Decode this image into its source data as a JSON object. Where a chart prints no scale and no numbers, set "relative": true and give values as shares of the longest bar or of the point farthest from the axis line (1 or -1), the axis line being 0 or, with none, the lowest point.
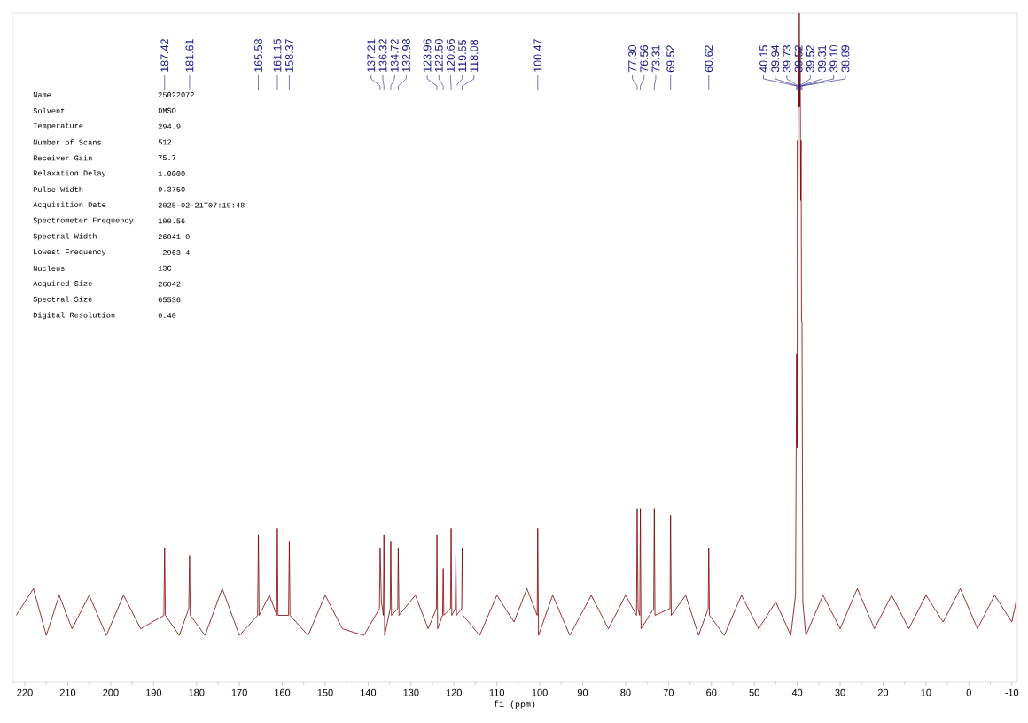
{
  "chart_data": {
    "type": "line",
    "relative": true,
    "xlabel": "f1 (ppm)",
    "xlim": [
      222.9,
      -11.3
    ],
    "xticks": [
      220,
      210,
      200,
      190,
      180,
      170,
      160,
      150,
      140,
      130,
      120,
      110,
      100,
      90,
      80,
      70,
      60,
      50,
      40,
      30,
      20,
      10,
      0,
      -10
    ],
    "series": [
      {
        "color": "#7f0000",
        "x": [
          222,
          218,
          215,
          212,
          209,
          205,
          201,
          197,
          193,
          187.6,
          187.42,
          187.25,
          184,
          181.8,
          181.61,
          181.45,
          178,
          174,
          170,
          165.75,
          165.58,
          165.4,
          163,
          161.3,
          161.15,
          161.0,
          158.55,
          158.37,
          158.2,
          154,
          150,
          146,
          141,
          137.35,
          137.21,
          136.9,
          136.45,
          136.32,
          136.15,
          134.85,
          134.72,
          134.55,
          133.1,
          132.98,
          132.8,
          129,
          126,
          124.1,
          123.96,
          123.8,
          122.65,
          122.5,
          122.35,
          120.8,
          120.66,
          120.5,
          119.7,
          119.55,
          119.4,
          118.2,
          118.08,
          117.9,
          114,
          110,
          106,
          103,
          100.6,
          100.47,
          100.3,
          97,
          93,
          88,
          84,
          80,
          77.45,
          77.3,
          77.1,
          76.7,
          76.56,
          76.4,
          73.45,
          73.31,
          73.15,
          69.65,
          69.52,
          69.35,
          66,
          63,
          60.75,
          60.62,
          60.45,
          57,
          53,
          49,
          45,
          41.5,
          40.4,
          40.15,
          40.05,
          39.94,
          39.83,
          39.73,
          39.62,
          39.52,
          39.42,
          39.31,
          39.2,
          39.1,
          39.0,
          38.89,
          38.7,
          38,
          34,
          30,
          26,
          22,
          18,
          14,
          10,
          6,
          2,
          -2,
          -6,
          -10,
          -11
        ],
        "values": [
          0.1,
          0.14,
          0.07,
          0.13,
          0.08,
          0.13,
          0.07,
          0.13,
          0.08,
          0.1,
          0.2,
          0.1,
          0.07,
          0.11,
          0.19,
          0.1,
          0.07,
          0.14,
          0.07,
          0.1,
          0.22,
          0.1,
          0.13,
          0.1,
          0.23,
          0.1,
          0.1,
          0.21,
          0.1,
          0.07,
          0.13,
          0.08,
          0.07,
          0.11,
          0.2,
          0.12,
          0.1,
          0.22,
          0.07,
          0.11,
          0.21,
          0.1,
          0.11,
          0.2,
          0.1,
          0.13,
          0.08,
          0.11,
          0.22,
          0.08,
          0.1,
          0.17,
          0.1,
          0.11,
          0.23,
          0.1,
          0.11,
          0.19,
          0.1,
          0.11,
          0.2,
          0.1,
          0.07,
          0.13,
          0.09,
          0.14,
          0.1,
          0.23,
          0.07,
          0.13,
          0.07,
          0.13,
          0.08,
          0.13,
          0.1,
          0.26,
          0.11,
          0.1,
          0.26,
          0.08,
          0.11,
          0.26,
          0.1,
          0.11,
          0.25,
          0.1,
          0.13,
          0.07,
          0.11,
          0.2,
          0.1,
          0.07,
          0.13,
          0.08,
          0.12,
          0.07,
          0.13,
          0.49,
          0.35,
          0.81,
          0.63,
          0.95,
          0.86,
          1,
          0.86,
          0.95,
          0.72,
          0.81,
          0.54,
          0.54,
          0.12,
          0.07,
          0.13,
          0.08,
          0.14,
          0.08,
          0.13,
          0.08,
          0.13,
          0.09,
          0.14,
          0.08,
          0.13,
          0.09,
          0.12
        ]
      }
    ],
    "annotations": [
      {
        "text": "187.42",
        "x": 187.42
      },
      {
        "text": "181.61",
        "x": 181.61
      },
      {
        "text": "165.58",
        "x": 165.58
      },
      {
        "text": "161.15",
        "x": 161.15
      },
      {
        "text": "158.37",
        "x": 158.37
      },
      {
        "text": "137.21",
        "x": 137.21
      },
      {
        "text": "136.32",
        "x": 136.32
      },
      {
        "text": "134.72",
        "x": 134.72
      },
      {
        "text": "132.98",
        "x": 132.98
      },
      {
        "text": "123.96",
        "x": 123.96
      },
      {
        "text": "122.50",
        "x": 122.5
      },
      {
        "text": "120.66",
        "x": 120.66
      },
      {
        "text": "119.55",
        "x": 119.55
      },
      {
        "text": "118.08",
        "x": 118.08
      },
      {
        "text": "100.47",
        "x": 100.47
      },
      {
        "text": "77.30",
        "x": 77.3
      },
      {
        "text": "76.56",
        "x": 76.56
      },
      {
        "text": "73.31",
        "x": 73.31
      },
      {
        "text": "69.52",
        "x": 69.52
      },
      {
        "text": "60.62",
        "x": 60.62
      },
      {
        "text": "40.15",
        "x": 40.15
      },
      {
        "text": "39.94",
        "x": 39.94
      },
      {
        "text": "39.73",
        "x": 39.73
      },
      {
        "text": "39.52",
        "x": 39.52
      },
      {
        "text": "39.52",
        "x": 39.52
      },
      {
        "text": "39.31",
        "x": 39.31
      },
      {
        "text": "39.10",
        "x": 39.1
      },
      {
        "text": "38.89",
        "x": 38.89
      },
      "Name",
      "25022072",
      "Solvent",
      "DMSO",
      "Temperature",
      "294.9",
      "Number of Scans",
      "512",
      "Receiver Gain",
      "75.7",
      "Relaxation Delay",
      "1.0000",
      "Pulse Width",
      "9.3750",
      "Acquisition Date",
      "2025-02-21T07:19:48",
      "Spectrometer Frequency",
      "100.56",
      "Spectral Width",
      "26041.0",
      "Lowest Frequency",
      "-2963.4",
      "Nucleus",
      "13C",
      "Acquired Size",
      "26042",
      "Spectral Size",
      "65536",
      "Digital Resolution",
      "0.40"
    ]
  }
}
